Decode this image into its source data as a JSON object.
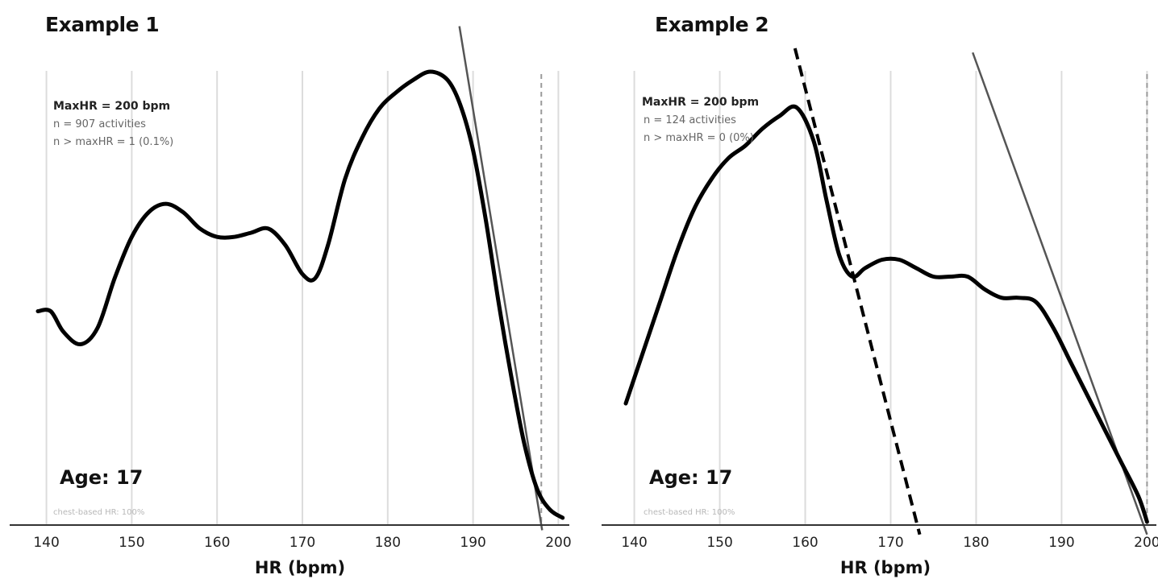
{
  "chart_data": [
    {
      "type": "line",
      "title": "Example 1",
      "xlabel": "HR (bpm)",
      "ylabel": "",
      "xlim": [
        139,
        201
      ],
      "xticks": [
        140,
        150,
        160,
        170,
        180,
        190,
        200
      ],
      "grid": true,
      "annotations": {
        "maxhr": "MaxHR = 200 bpm",
        "n": "n = 907 activities",
        "n_over": "n > maxHR = 1 (0.1%)",
        "age": "Age: 17",
        "footnote": "chest-based HR: 100%"
      },
      "max_hr": 198,
      "series": [
        {
          "x": [
            139,
            140.5,
            142,
            144,
            146,
            148,
            150,
            152,
            154,
            156,
            158,
            160,
            162,
            164,
            166,
            168,
            170,
            171.5,
            173,
            175,
            177,
            179,
            181,
            183,
            185,
            187,
            188.5,
            190,
            191.5,
            193,
            194.5,
            196,
            197.5,
            199,
            200.5
          ],
          "y": [
            0.5,
            0.5,
            0.45,
            0.42,
            0.46,
            0.58,
            0.68,
            0.74,
            0.76,
            0.74,
            0.7,
            0.68,
            0.68,
            0.69,
            0.7,
            0.66,
            0.59,
            0.58,
            0.66,
            0.82,
            0.92,
            0.99,
            1.03,
            1.06,
            1.08,
            1.06,
            1.0,
            0.89,
            0.72,
            0.52,
            0.34,
            0.18,
            0.07,
            0.02,
            0.0
          ]
        }
      ],
      "tangent_lines": [
        {
          "style": "solid",
          "points": [
            [
              188.4,
              1.19
            ],
            [
              198.1,
              -0.03
            ]
          ]
        }
      ]
    },
    {
      "type": "line",
      "title": "Example 2",
      "xlabel": "HR (bpm)",
      "ylabel": "",
      "xlim": [
        139,
        201
      ],
      "xticks": [
        140,
        150,
        160,
        170,
        180,
        190,
        200
      ],
      "grid": true,
      "annotations": {
        "maxhr": "MaxHR = 200 bpm",
        "n": "n = 124 activities",
        "n_over": "n > maxHR = 0 (0%)",
        "age": "Age: 17",
        "footnote": "chest-based HR: 100%"
      },
      "max_hr": 200,
      "series": [
        {
          "x": [
            139,
            141,
            143,
            145,
            147,
            149,
            151,
            153,
            155,
            157,
            159,
            161,
            162.5,
            164,
            165.5,
            167,
            169,
            171,
            173,
            175,
            177,
            179,
            181,
            183,
            185,
            187,
            189,
            191,
            193,
            195,
            197,
            199,
            200
          ],
          "y": [
            0.28,
            0.4,
            0.52,
            0.64,
            0.74,
            0.81,
            0.86,
            0.89,
            0.93,
            0.96,
            0.98,
            0.9,
            0.76,
            0.63,
            0.58,
            0.6,
            0.62,
            0.62,
            0.6,
            0.58,
            0.58,
            0.58,
            0.55,
            0.53,
            0.53,
            0.52,
            0.46,
            0.38,
            0.3,
            0.22,
            0.14,
            0.06,
            0.0
          ]
        }
      ],
      "tangent_lines": [
        {
          "style": "dashed",
          "points": [
            [
              158.8,
              1.12
            ],
            [
              173.4,
              -0.03
            ]
          ]
        },
        {
          "style": "solid",
          "points": [
            [
              179.6,
              1.11
            ],
            [
              200.0,
              -0.03
            ]
          ]
        }
      ]
    }
  ]
}
